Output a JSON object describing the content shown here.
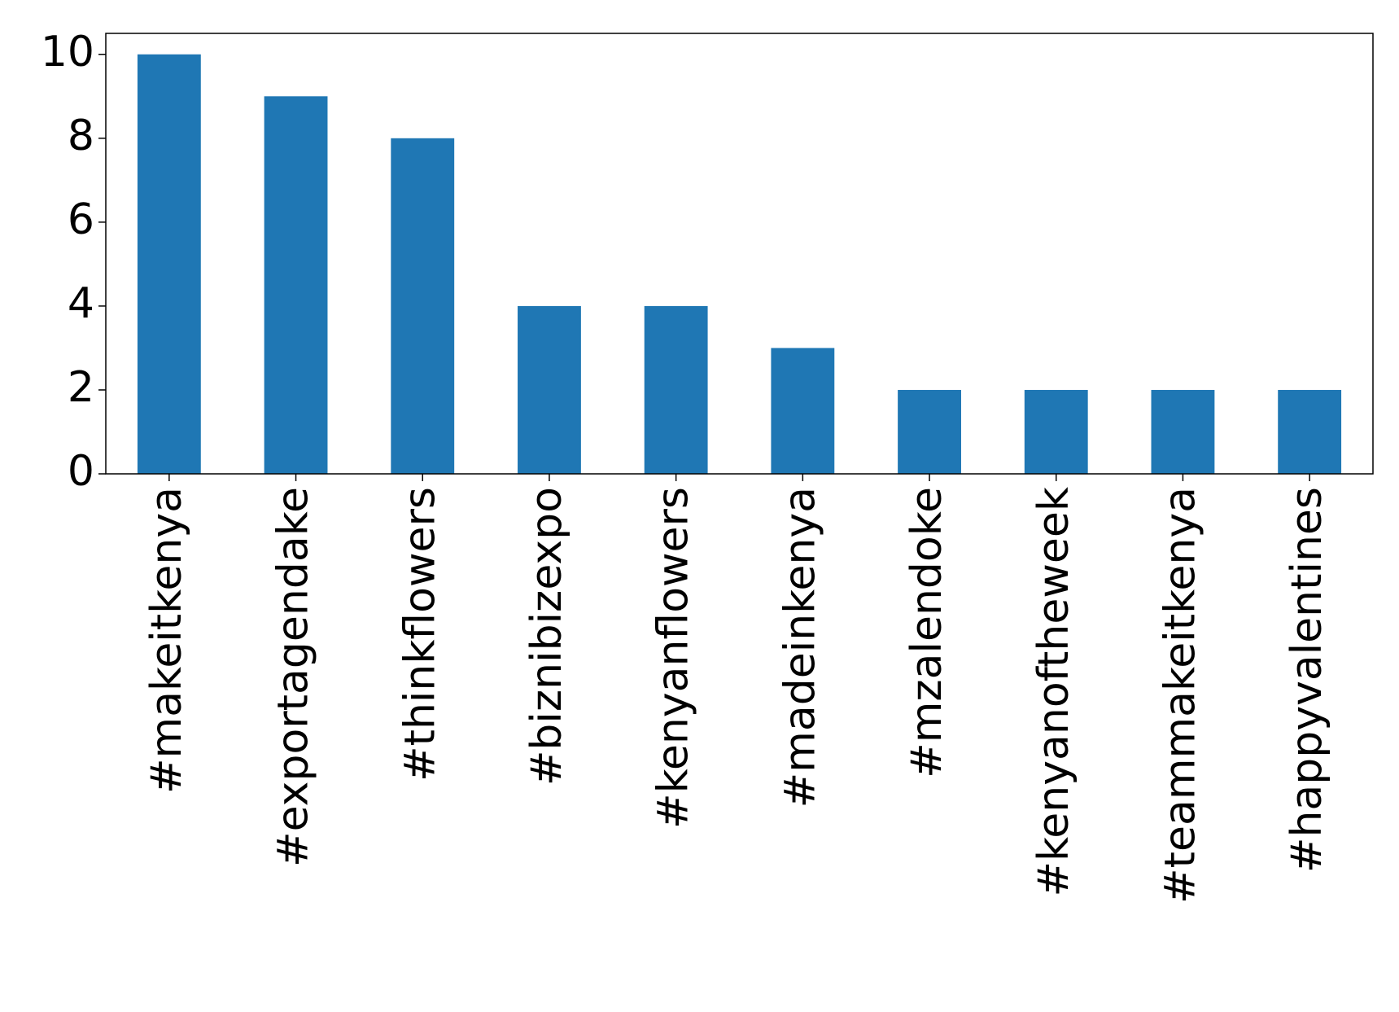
{
  "chart_data": {
    "type": "bar",
    "categories": [
      "#makeitkenya",
      "#exportagendake",
      "#thinkflowers",
      "#biznibizexpo",
      "#kenyanflowers",
      "#madeinkenya",
      "#mzalendoke",
      "#kenyanoftheweek",
      "#teammakeitkenya",
      "#happyvalentines"
    ],
    "values": [
      10,
      9,
      8,
      4,
      4,
      3,
      2,
      2,
      2,
      2
    ],
    "color": "#1f77b4",
    "ylim": [
      0,
      10.5
    ],
    "yticks": [
      0,
      2,
      4,
      6,
      8,
      10
    ],
    "grid": false
  }
}
